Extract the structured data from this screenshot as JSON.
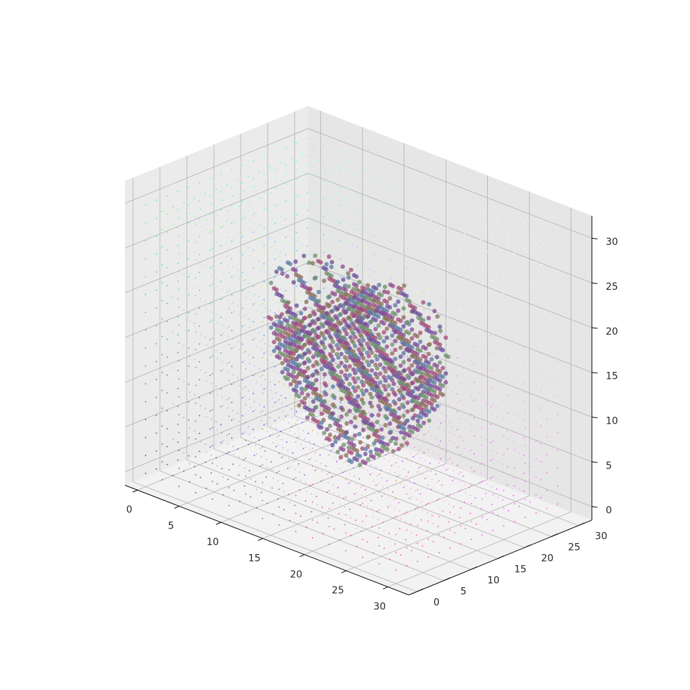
{
  "chart_data": {
    "type": "scatter",
    "projection": "3d",
    "title": "",
    "xlabel": "",
    "ylabel": "",
    "zlabel": "",
    "grid": true,
    "xlim": [
      0,
      31
    ],
    "ylim": [
      0,
      31
    ],
    "zlim": [
      0,
      31
    ],
    "x_ticks": [
      0,
      5,
      10,
      15,
      20,
      25,
      30
    ],
    "y_ticks": [
      0,
      5,
      10,
      15,
      20,
      25,
      30
    ],
    "z_ticks": [
      0,
      5,
      10,
      15,
      20,
      25,
      30
    ],
    "grid_shape": [
      32,
      32,
      32
    ],
    "grid_step": 2,
    "point_color": "rgb of (x, y, z) scaled to the cube",
    "shape": "heart",
    "shape_center": [
      15.5,
      15.5,
      12
    ],
    "shape_colors": [
      "#6a4d9a",
      "#8a4a8f",
      "#a24b77",
      "#5a7aa0",
      "#6f8f6a",
      "#8b6d5a"
    ],
    "pane_colors": {
      "floor": "#f2f2f2",
      "wall_a": "#ebebeb",
      "wall_b": "#e6e6e6"
    }
  }
}
